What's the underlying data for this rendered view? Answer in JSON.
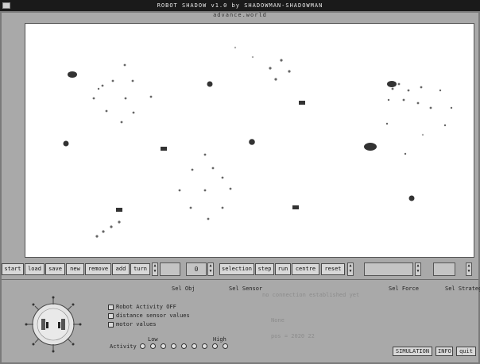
{
  "window": {
    "title": "ROBOT SHADOW v1.0 by SHADOWMAN-SHADOWMAN",
    "world_file": "advance.world"
  },
  "toolbar": {
    "start": "start",
    "load": "load",
    "save": "save",
    "new": "new",
    "remove": "remove",
    "add": "add",
    "turn": "turn",
    "angle_value": "0",
    "selection": "selection",
    "step": "step",
    "run": "run",
    "centre": "centre",
    "reset": "reset"
  },
  "panel": {
    "selected_object": "Sel Obj",
    "selected_sensor": "Sel Sensor",
    "selected_force": "Sel Force",
    "selected_strategy": "Sel Strategy",
    "status_message": "no connection established yet",
    "status_sub": "None",
    "position_readout": "pos = 2020 22",
    "robot_activity_label": "Robot Activity OFF",
    "distance_sensor_label": "distance sensor values",
    "motor_values_label": "motor values",
    "activity_label": "Activity",
    "activity_low": "Low",
    "activity_high": "High",
    "activity_level_count": 9
  },
  "buttons": {
    "simulation": "SIMULATION",
    "info": "INFO",
    "quit": "quit"
  }
}
